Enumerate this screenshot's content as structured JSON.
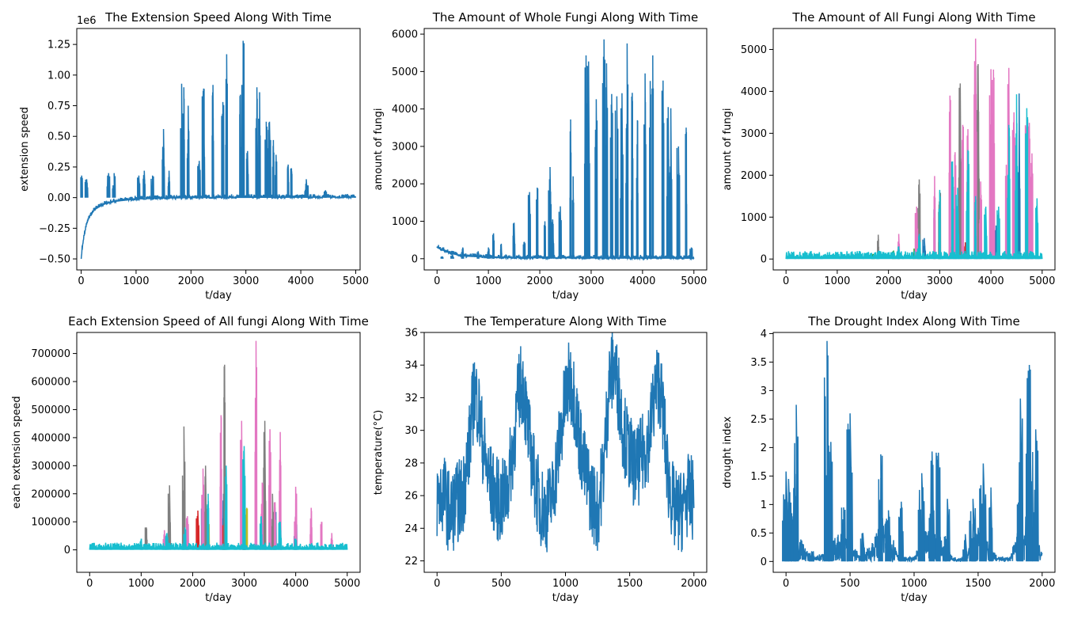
{
  "chart_data": [
    {
      "type": "line",
      "title": "The Extension Speed Along With Time",
      "xlabel": "t/day",
      "ylabel": "extension speed",
      "offset_text": "1e6",
      "xlim": [
        -80,
        5080
      ],
      "ylim": [
        -0.59,
        1.38
      ],
      "xticks": [
        0,
        1000,
        2000,
        3000,
        4000,
        5000
      ],
      "yticks": [
        -0.5,
        -0.25,
        0.0,
        0.25,
        0.5,
        0.75,
        1.0,
        1.25
      ],
      "ytick_labels": [
        "−0.50",
        "−0.25",
        "0.00",
        "0.25",
        "0.50",
        "0.75",
        "1.00",
        "1.25"
      ],
      "grid": false,
      "series": [
        {
          "color": "#1f77b4",
          "x": [
            0,
            30,
            60,
            100,
            150,
            250,
            400,
            600,
            1000,
            1500,
            2000,
            3000,
            4000,
            5000
          ],
          "y": [
            -0.5,
            -0.38,
            -0.3,
            -0.22,
            -0.16,
            -0.1,
            -0.06,
            -0.035,
            -0.015,
            -0.008,
            -0.004,
            -0.002,
            -0.001,
            0.0
          ],
          "spikes_x": [
            10,
            100,
            500,
            600,
            1050,
            1150,
            1300,
            1500,
            1600,
            1830,
            1870,
            1950,
            2150,
            2230,
            2400,
            2580,
            2650,
            2900,
            2950,
            3030,
            3200,
            3250,
            3370,
            3430,
            3500,
            3550,
            3770,
            3830,
            4100,
            4120,
            4450
          ],
          "spikes_y": [
            0.18,
            0.15,
            0.2,
            0.2,
            0.18,
            0.22,
            0.18,
            0.56,
            0.22,
            0.93,
            0.9,
            0.75,
            0.3,
            0.89,
            0.92,
            0.78,
            1.17,
            0.84,
            1.28,
            0.38,
            0.9,
            0.86,
            0.62,
            0.62,
            0.47,
            0.35,
            0.27,
            0.24,
            0.15,
            0.1,
            0.06
          ]
        }
      ]
    },
    {
      "type": "line",
      "title": "The Amount of Whole Fungi Along With Time",
      "xlabel": "t/day",
      "ylabel": "amount of fungi",
      "xlim": [
        -250,
        5250
      ],
      "ylim": [
        -300,
        6150
      ],
      "xticks": [
        0,
        1000,
        2000,
        3000,
        4000,
        5000
      ],
      "yticks": [
        0,
        1000,
        2000,
        3000,
        4000,
        5000,
        6000
      ],
      "grid": false,
      "series": [
        {
          "color": "#1f77b4",
          "x": [
            0,
            100,
            300,
            500,
            1000,
            1500,
            2000,
            3000,
            4000,
            5000
          ],
          "y": [
            290,
            220,
            120,
            60,
            25,
            15,
            10,
            6,
            4,
            0
          ],
          "spikes_x": [
            100,
            300,
            500,
            800,
            1000,
            1100,
            1250,
            1500,
            1700,
            1800,
            1950,
            2100,
            2200,
            2250,
            2400,
            2600,
            2650,
            2900,
            2950,
            3100,
            3250,
            3300,
            3400,
            3500,
            3600,
            3700,
            3800,
            3900,
            4050,
            4150,
            4200,
            4400,
            4500,
            4550,
            4700,
            4850,
            4950
          ],
          "spikes_y": [
            60,
            100,
            300,
            200,
            300,
            680,
            400,
            960,
            450,
            1780,
            1900,
            1000,
            2450,
            1050,
            1400,
            3720,
            2200,
            5430,
            5270,
            4260,
            5860,
            5220,
            4400,
            4340,
            4420,
            5750,
            4430,
            3700,
            4950,
            4750,
            5430,
            4760,
            4050,
            4020,
            3000,
            3500,
            300
          ]
        }
      ]
    },
    {
      "type": "line",
      "title": "The Amount of All Fungi Along With Time",
      "xlabel": "t/day",
      "ylabel": "amount of fungi",
      "xlim": [
        -250,
        5250
      ],
      "ylim": [
        -260,
        5500
      ],
      "xticks": [
        0,
        1000,
        2000,
        3000,
        4000,
        5000
      ],
      "yticks": [
        0,
        1000,
        2000,
        3000,
        4000,
        5000
      ],
      "grid": false,
      "series": [
        {
          "color": "#1f77b4",
          "spikes_x": [
            2700,
            2900,
            3300,
            3550,
            3800,
            4100,
            4350,
            4550,
            4800
          ],
          "spikes_y": [
            500,
            1200,
            500,
            900,
            600,
            800,
            1200,
            3950,
            1400
          ]
        },
        {
          "color": "#d62728",
          "spikes_x": [
            2200,
            2600,
            3000,
            3500,
            4000
          ],
          "spikes_y": [
            350,
            400,
            500,
            400,
            450
          ]
        },
        {
          "color": "#2ca02c",
          "spikes_x": [
            1700,
            2100,
            2500
          ],
          "spikes_y": [
            120,
            200,
            250
          ]
        },
        {
          "color": "#bcbd22",
          "spikes_x": [
            2600,
            3000,
            3200
          ],
          "spikes_y": [
            600,
            700,
            350
          ]
        },
        {
          "color": "#7f7f7f",
          "spikes_x": [
            1800,
            2600,
            3000,
            3400,
            3750,
            4150
          ],
          "spikes_y": [
            580,
            1900,
            1600,
            4190,
            4650,
            1100
          ]
        },
        {
          "color": "#e377c2",
          "spikes_x": [
            2200,
            2550,
            2900,
            3200,
            3300,
            3450,
            3550,
            3700,
            3800,
            4000,
            4050,
            4300,
            4350,
            4450,
            4700,
            4750,
            4800
          ],
          "spikes_y": [
            600,
            1250,
            1980,
            3900,
            2550,
            3200,
            3100,
            5260,
            1850,
            4530,
            4520,
            2250,
            4560,
            3500,
            3380,
            3250,
            2520
          ]
        },
        {
          "color": "#17becf",
          "spikes_x": [
            1800,
            2200,
            2600,
            3000,
            3250,
            3350,
            3550,
            3700,
            3900,
            4150,
            4350,
            4500,
            4700,
            4900
          ],
          "spikes_y": [
            200,
            300,
            600,
            1650,
            2330,
            1700,
            2600,
            1500,
            1250,
            1250,
            3200,
            3930,
            3600,
            1450
          ]
        }
      ],
      "base": {
        "color": "#17becf",
        "level": 150
      }
    },
    {
      "type": "line",
      "title": "Each Extension Speed of All fungi Along With Time",
      "xlabel": "t/day",
      "ylabel": "each extension speed",
      "xlim": [
        -250,
        5250
      ],
      "ylim": [
        -80000,
        775000
      ],
      "xticks": [
        0,
        1000,
        2000,
        3000,
        4000,
        5000
      ],
      "yticks": [
        0,
        100000,
        200000,
        300000,
        400000,
        500000,
        600000,
        700000
      ],
      "grid": false,
      "series": [
        {
          "color": "#1f77b4",
          "spikes_x": [
            2200,
            2600,
            3000,
            3400,
            3600,
            4000
          ],
          "spikes_y": [
            150000,
            200000,
            250000,
            200000,
            150000,
            120000
          ]
        },
        {
          "color": "#d62728",
          "spikes_x": [
            1900,
            2100,
            2600,
            3000
          ],
          "spikes_y": [
            100000,
            140000,
            90000,
            120000
          ]
        },
        {
          "color": "#bcbd22",
          "spikes_x": [
            2300,
            2650,
            3050
          ],
          "spikes_y": [
            120000,
            160000,
            150000
          ]
        },
        {
          "color": "#7f7f7f",
          "spikes_x": [
            1100,
            1550,
            1830,
            2250,
            2620,
            3000,
            3400,
            3550
          ],
          "spikes_y": [
            80000,
            230000,
            440000,
            300000,
            660000,
            250000,
            460000,
            200000
          ]
        },
        {
          "color": "#e377c2",
          "spikes_x": [
            1450,
            1900,
            2200,
            2550,
            2950,
            3230,
            3350,
            3500,
            3600,
            3700,
            4000,
            4300,
            4500,
            4700
          ],
          "spikes_y": [
            70000,
            120000,
            290000,
            480000,
            460000,
            745000,
            240000,
            430000,
            170000,
            420000,
            225000,
            150000,
            100000,
            60000
          ]
        },
        {
          "color": "#17becf",
          "spikes_x": [
            1000,
            1500,
            1850,
            2300,
            2650,
            3000,
            3330,
            3700,
            4000
          ],
          "spikes_y": [
            40000,
            60000,
            80000,
            200000,
            300000,
            370000,
            120000,
            100000,
            40000
          ]
        }
      ],
      "base": {
        "color": "#17becf",
        "level": 20000
      }
    },
    {
      "type": "line",
      "title": "The Temperature Along With Time",
      "xlabel": "t/day",
      "ylabel": "temperature(°C)",
      "xlim": [
        -100,
        2100
      ],
      "ylim": [
        21.3,
        36.0
      ],
      "xticks": [
        0,
        500,
        1000,
        1500,
        2000
      ],
      "yticks": [
        22,
        24,
        26,
        28,
        30,
        32,
        34,
        36
      ],
      "grid": false,
      "series": [
        {
          "color": "#1f77b4",
          "x": [
            0,
            50,
            100,
            150,
            200,
            250,
            290,
            320,
            360,
            400,
            450,
            500,
            550,
            600,
            640,
            670,
            700,
            750,
            800,
            850,
            900,
            950,
            1000,
            1030,
            1060,
            1100,
            1150,
            1200,
            1250,
            1300,
            1340,
            1380,
            1420,
            1450,
            1500,
            1550,
            1600,
            1650,
            1700,
            1730,
            1760,
            1800,
            1850,
            1900,
            1950,
            2000
          ],
          "y": [
            25.8,
            26.2,
            24.8,
            25.5,
            26.0,
            29.0,
            32.5,
            31.5,
            29.0,
            27.0,
            26.0,
            25.5,
            26.5,
            29.5,
            32.5,
            33.0,
            30.5,
            27.5,
            25.5,
            25.0,
            26.0,
            29.0,
            32.0,
            33.0,
            32.5,
            30.0,
            27.5,
            26.0,
            25.0,
            28.0,
            33.0,
            34.0,
            32.0,
            30.0,
            28.5,
            27.5,
            28.5,
            29.5,
            32.5,
            33.0,
            31.0,
            27.0,
            25.0,
            25.0,
            26.0,
            25.8
          ],
          "noise": 2.6
        }
      ]
    },
    {
      "type": "line",
      "title": "The Drought Index Along With Time",
      "xlabel": "t/day",
      "ylabel": "drought index",
      "xlim": [
        -100,
        2100
      ],
      "ylim": [
        -0.19,
        4.02
      ],
      "xticks": [
        0,
        500,
        1000,
        1500,
        2000
      ],
      "yticks": [
        0.0,
        0.5,
        1.0,
        1.5,
        2.0,
        2.5,
        3.0,
        3.5,
        4.0
      ],
      "grid": false,
      "series": [
        {
          "color": "#1f77b4",
          "x": [
            0,
            50,
            100,
            150,
            200,
            300,
            400,
            450,
            500,
            600,
            700,
            750,
            800,
            900,
            1000,
            1100,
            1200,
            1300,
            1400,
            1500,
            1550,
            1650,
            1750,
            1800,
            1850,
            1900,
            1950,
            2000
          ],
          "y": [
            0.5,
            0.6,
            0.3,
            0.15,
            0.05,
            0.1,
            0.3,
            0.4,
            0.2,
            0.05,
            0.3,
            0.5,
            0.4,
            0.05,
            0.05,
            0.4,
            0.3,
            0.05,
            0.05,
            0.4,
            0.3,
            0.05,
            0.05,
            0.3,
            0.5,
            0.5,
            0.3,
            0.1
          ],
          "spikes_x": [
            0,
            20,
            60,
            80,
            200,
            320,
            350,
            450,
            500,
            600,
            740,
            800,
            900,
            1060,
            1140,
            1190,
            1260,
            1400,
            1460,
            1540,
            1600,
            1830,
            1900,
            1950
          ],
          "spikes_y": [
            1.58,
            1.45,
            1.29,
            2.75,
            0.18,
            3.87,
            2.1,
            0.95,
            2.6,
            0.5,
            1.88,
            0.9,
            1.05,
            1.55,
            1.93,
            1.91,
            1.1,
            0.48,
            1.1,
            1.72,
            1.3,
            2.86,
            3.45,
            2.32
          ]
        }
      ]
    }
  ]
}
